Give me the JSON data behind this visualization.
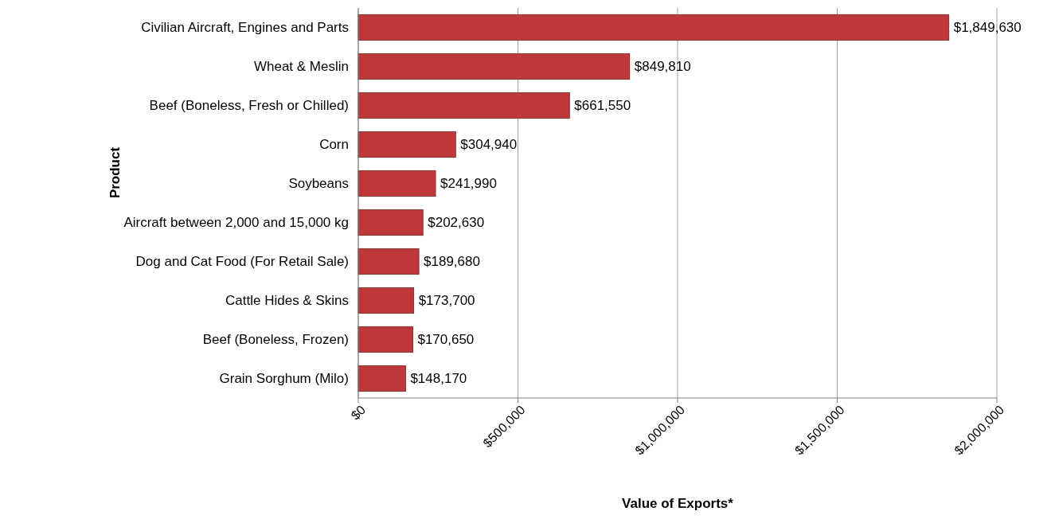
{
  "chart_data": {
    "type": "bar",
    "orientation": "horizontal",
    "xlabel": "Value of Exports*",
    "ylabel": "Product",
    "categories": [
      "Civilian Aircraft, Engines and Parts",
      "Wheat & Meslin",
      "Beef (Boneless, Fresh or Chilled)",
      "Corn",
      "Soybeans",
      "Aircraft between 2,000 and 15,000 kg",
      "Dog and Cat Food (For Retail Sale)",
      "Cattle Hides & Skins",
      "Beef (Boneless, Frozen)",
      "Grain Sorghum (Milo)"
    ],
    "values": [
      1849630,
      849810,
      661550,
      304940,
      241990,
      202630,
      189680,
      173700,
      170650,
      148170
    ],
    "value_labels": [
      "$1,849,630",
      "$849,810",
      "$661,550",
      "$304,940",
      "$241,990",
      "$202,630",
      "$189,680",
      "$173,700",
      "$170,650",
      "$148,170"
    ],
    "color": "#c0393a",
    "xlim": [
      0,
      2000000
    ],
    "xticks": [
      {
        "value": 0,
        "label": "$0"
      },
      {
        "value": 500000,
        "label": "$500,000"
      },
      {
        "value": 1000000,
        "label": "$1,000,000"
      },
      {
        "value": 1500000,
        "label": "$1,500,000"
      },
      {
        "value": 2000000,
        "label": "$2,000,000"
      }
    ],
    "grid": "x"
  }
}
